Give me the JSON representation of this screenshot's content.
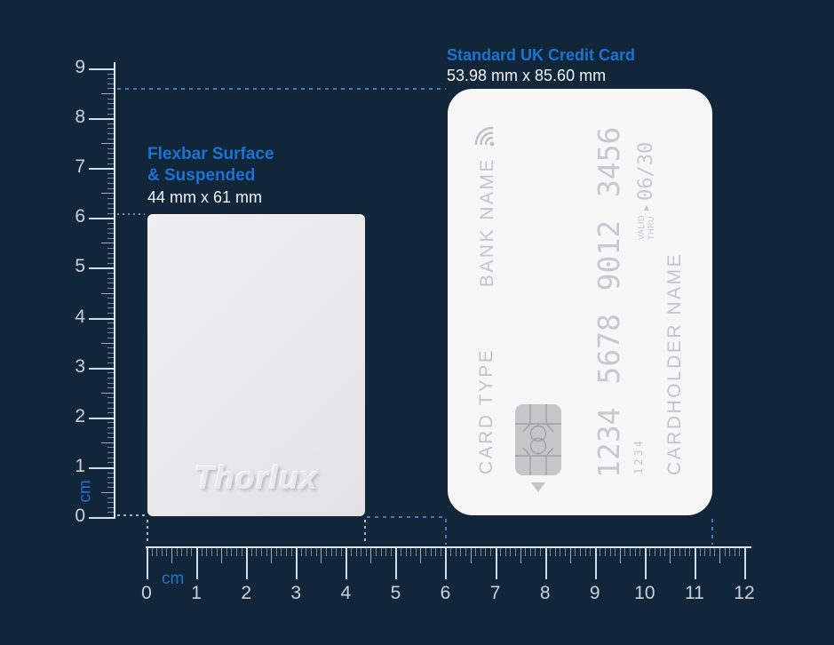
{
  "colors": {
    "background": "#12263a",
    "accent_blue": "#1c73d4",
    "ruler_label": "#c9d0da",
    "card_background": "#f7f7f8",
    "card_text": "#c5c5c9",
    "flexbar_background": "#e9e9eb"
  },
  "rulers": {
    "vertical": {
      "unit": "cm",
      "labels": [
        "0",
        "1",
        "2",
        "3",
        "4",
        "5",
        "6",
        "7",
        "8",
        "9"
      ]
    },
    "horizontal": {
      "unit": "cm",
      "labels": [
        "0",
        "1",
        "2",
        "3",
        "4",
        "5",
        "6",
        "7",
        "8",
        "9",
        "10",
        "11",
        "12"
      ]
    }
  },
  "flexbar": {
    "title_line1": "Flexbar Surface",
    "title_line2": "& Suspended",
    "dimensions": "44 mm x 61 mm",
    "brand": "Thorlux"
  },
  "credit_card": {
    "title": "Standard UK Credit Card",
    "dimensions": "53.98 mm x 85.60 mm",
    "bank_label": "BANK NAME",
    "type_label": "CARD TYPE",
    "number": "1234 5678 9012 3456",
    "number_small": "1234",
    "valid_line1": "VALID",
    "valid_line2": "THRU",
    "expiry": "06/30",
    "cardholder_label": "CARDHOLDER NAME"
  }
}
